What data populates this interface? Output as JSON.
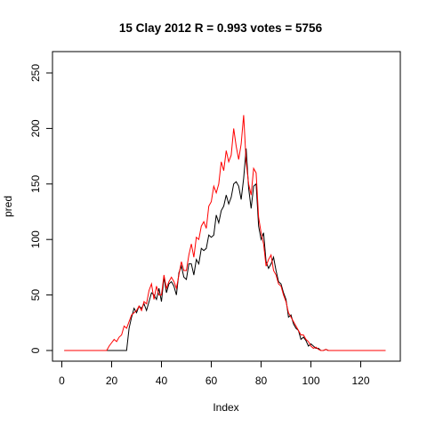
{
  "chart_data": {
    "type": "line",
    "title": "15 Clay 2012 R = 0.993 votes = 5756",
    "xlabel": "Index",
    "ylabel": "pred",
    "xlim": [
      1,
      130
    ],
    "ylim": [
      0,
      260
    ],
    "x_ticks": [
      0,
      20,
      40,
      60,
      80,
      100,
      120
    ],
    "y_ticks": [
      0,
      50,
      100,
      150,
      200,
      250
    ],
    "grid": false,
    "legend": "none",
    "series": [
      {
        "color": "#000000",
        "values": [
          0,
          0,
          0,
          0,
          0,
          0,
          0,
          0,
          0,
          0,
          0,
          0,
          0,
          0,
          0,
          0,
          0,
          0,
          0,
          0,
          0,
          0,
          0,
          0,
          0,
          0,
          20,
          30,
          38,
          34,
          40,
          38,
          42,
          36,
          44,
          52,
          50,
          46,
          56,
          44,
          66,
          52,
          60,
          62,
          58,
          50,
          70,
          76,
          66,
          64,
          78,
          78,
          68,
          82,
          78,
          92,
          90,
          92,
          104,
          102,
          104,
          122,
          115,
          126,
          130,
          140,
          132,
          138,
          150,
          152,
          148,
          136,
          155,
          182,
          146,
          128,
          148,
          150,
          112,
          100,
          106,
          80,
          74,
          78,
          84,
          72,
          62,
          60,
          52,
          46,
          30,
          32,
          24,
          20,
          18,
          10,
          12,
          9,
          4,
          6,
          4,
          2,
          2,
          0,
          0,
          1,
          0,
          0,
          0,
          0,
          0,
          0,
          0,
          0,
          0,
          0,
          0,
          0,
          0,
          0,
          0,
          0,
          0,
          0,
          0,
          0,
          0,
          0,
          0,
          0
        ]
      },
      {
        "color": "#ff0000",
        "values": [
          0,
          0,
          0,
          0,
          0,
          0,
          0,
          0,
          0,
          0,
          0,
          0,
          0,
          0,
          0,
          0,
          0,
          0,
          4,
          7,
          10,
          8,
          12,
          14,
          22,
          20,
          26,
          32,
          34,
          36,
          40,
          36,
          44,
          42,
          54,
          60,
          46,
          58,
          50,
          50,
          68,
          56,
          62,
          66,
          62,
          56,
          68,
          80,
          72,
          72,
          86,
          96,
          84,
          102,
          100,
          112,
          116,
          110,
          130,
          134,
          148,
          142,
          150,
          170,
          162,
          180,
          170,
          176,
          200,
          184,
          172,
          186,
          212,
          170,
          150,
          140,
          164,
          160,
          120,
          106,
          96,
          76,
          82,
          86,
          72,
          68,
          60,
          58,
          50,
          44,
          34,
          30,
          26,
          22,
          18,
          14,
          14,
          10,
          8,
          4,
          2,
          3,
          1,
          0,
          0,
          1,
          0,
          0,
          0,
          0,
          0,
          0,
          0,
          0,
          0,
          0,
          0,
          0,
          0,
          0,
          0,
          0,
          0,
          0,
          0,
          0,
          0,
          0,
          0,
          0
        ]
      }
    ]
  }
}
